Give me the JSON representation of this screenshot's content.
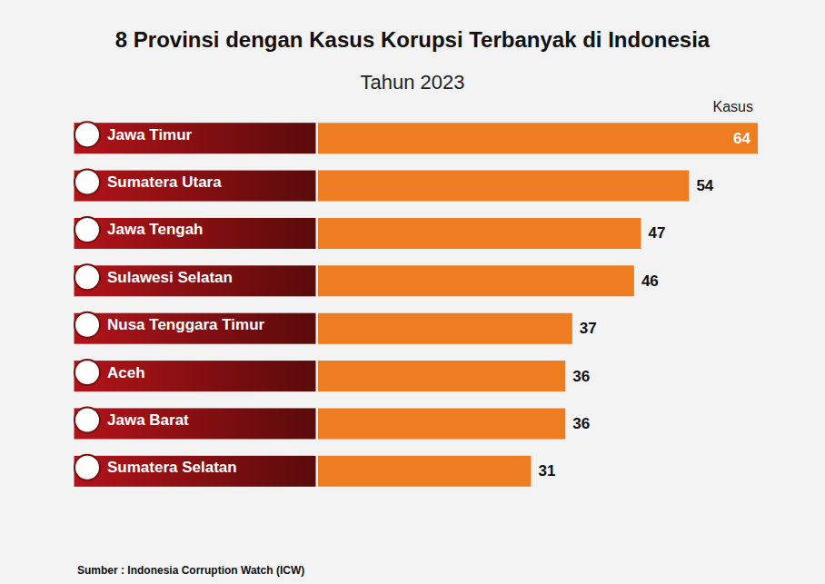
{
  "chart_data": {
    "type": "bar",
    "title": "8 Provinsi dengan Kasus Korupsi Terbanyak di Indonesia",
    "subtitle": "Tahun 2023",
    "xlabel": "Kasus",
    "source": "Sumber : Indonesia Corruption Watch (ICW)",
    "orientation": "horizontal",
    "categories": [
      "Jawa Timur",
      "Sumatera Utara",
      "Jawa Tengah",
      "Sulawesi Selatan",
      "Nusa Tenggara Timur",
      "Aceh",
      "Jawa Barat",
      "Sumatera Selatan"
    ],
    "values": [
      64,
      54,
      47,
      46,
      37,
      36,
      36,
      31
    ],
    "color": "#ee7d22",
    "xlim": [
      0,
      64
    ],
    "grid": false,
    "data_labels": true,
    "tick_labels": "y"
  }
}
